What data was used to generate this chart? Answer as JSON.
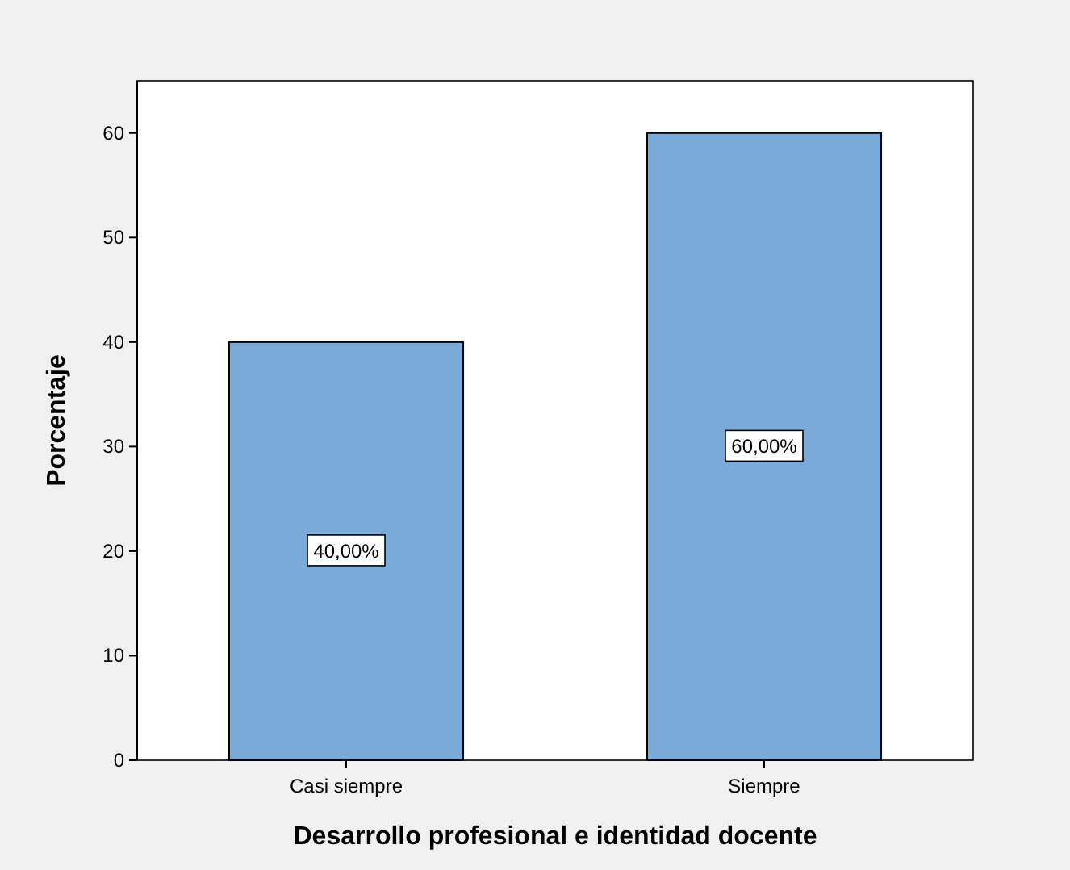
{
  "chart_data": {
    "type": "bar",
    "xlabel": "Desarrollo profesional e identidad docente",
    "ylabel": "Porcentaje",
    "categories": [
      "Casi siempre",
      "Siempre"
    ],
    "values": [
      40,
      60
    ],
    "color": "#7ba9d8",
    "value_labels": [
      "40,00%",
      "60,00%"
    ],
    "ylim": [
      0,
      65
    ],
    "yticks": [
      0,
      10,
      20,
      30,
      40,
      50,
      60
    ],
    "grid": false
  }
}
